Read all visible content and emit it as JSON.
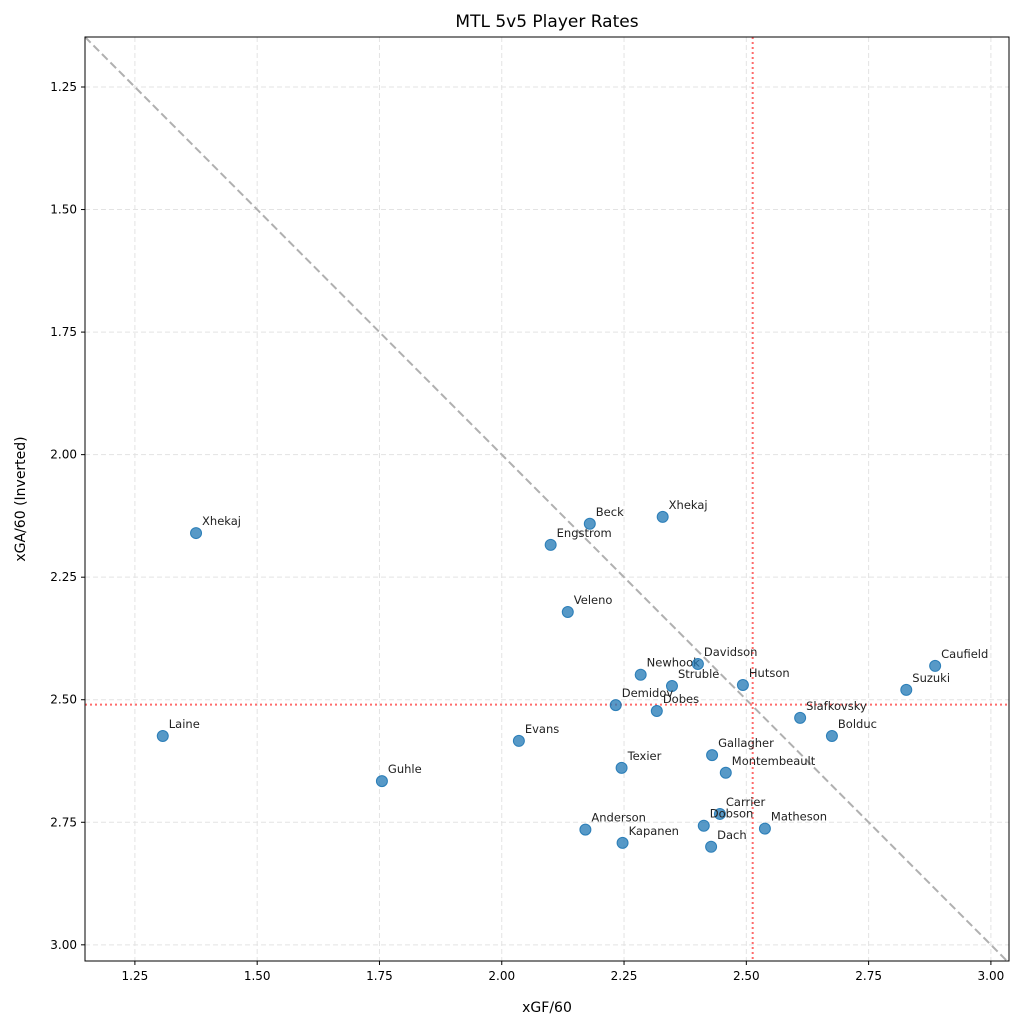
{
  "chart_data": {
    "type": "scatter",
    "title": "MTL 5v5 Player Rates",
    "xlabel": "xGF/60",
    "ylabel": "xGA/60 (Inverted)",
    "xlim": [
      1.148,
      3.037
    ],
    "ylim": [
      1.148,
      3.033
    ],
    "y_inverted": true,
    "grid": true,
    "xticks": [
      "1.25",
      "1.50",
      "1.75",
      "2.00",
      "2.25",
      "2.50",
      "2.75",
      "3.00"
    ],
    "yticks": [
      "1.25",
      "1.50",
      "1.75",
      "2.00",
      "2.25",
      "2.50",
      "2.75",
      "3.00"
    ],
    "reference_lines": {
      "x_mean": 2.513,
      "y_mean": 2.51,
      "diagonal": "y = x"
    },
    "colors": {
      "points": "#1f77b4",
      "mean_lines": "#ff6b6b",
      "diagonal": "#b0b0b0"
    },
    "points": [
      {
        "name": "Xhekaj",
        "x": 1.375,
        "y": 2.16
      },
      {
        "name": "Laine",
        "x": 1.307,
        "y": 2.574
      },
      {
        "name": "Guhle",
        "x": 1.755,
        "y": 2.666
      },
      {
        "name": "Evans",
        "x": 2.035,
        "y": 2.584
      },
      {
        "name": "Engstrom",
        "x": 2.1,
        "y": 2.184
      },
      {
        "name": "Beck",
        "x": 2.18,
        "y": 2.141
      },
      {
        "name": "Xhekaj",
        "x": 2.329,
        "y": 2.127
      },
      {
        "name": "Veleno",
        "x": 2.135,
        "y": 2.321
      },
      {
        "name": "Newhook",
        "x": 2.284,
        "y": 2.449
      },
      {
        "name": "Davidson",
        "x": 2.401,
        "y": 2.427
      },
      {
        "name": "Struble",
        "x": 2.348,
        "y": 2.472
      },
      {
        "name": "Hutson",
        "x": 2.493,
        "y": 2.47
      },
      {
        "name": "Demidov",
        "x": 2.233,
        "y": 2.511
      },
      {
        "name": "Dobes",
        "x": 2.317,
        "y": 2.523
      },
      {
        "name": "Slafkovsky",
        "x": 2.61,
        "y": 2.537
      },
      {
        "name": "Bolduc",
        "x": 2.675,
        "y": 2.574
      },
      {
        "name": "Caufield",
        "x": 2.886,
        "y": 2.431
      },
      {
        "name": "Suzuki",
        "x": 2.827,
        "y": 2.48
      },
      {
        "name": "Gallagher",
        "x": 2.43,
        "y": 2.613
      },
      {
        "name": "Montembeault",
        "x": 2.458,
        "y": 2.649
      },
      {
        "name": "Texier",
        "x": 2.245,
        "y": 2.639
      },
      {
        "name": "Carrier",
        "x": 2.446,
        "y": 2.733
      },
      {
        "name": "Dobson",
        "x": 2.413,
        "y": 2.757
      },
      {
        "name": "Matheson",
        "x": 2.538,
        "y": 2.763
      },
      {
        "name": "Anderson",
        "x": 2.171,
        "y": 2.765
      },
      {
        "name": "Kapanen",
        "x": 2.247,
        "y": 2.792
      },
      {
        "name": "Dach",
        "x": 2.428,
        "y": 2.8
      }
    ]
  }
}
